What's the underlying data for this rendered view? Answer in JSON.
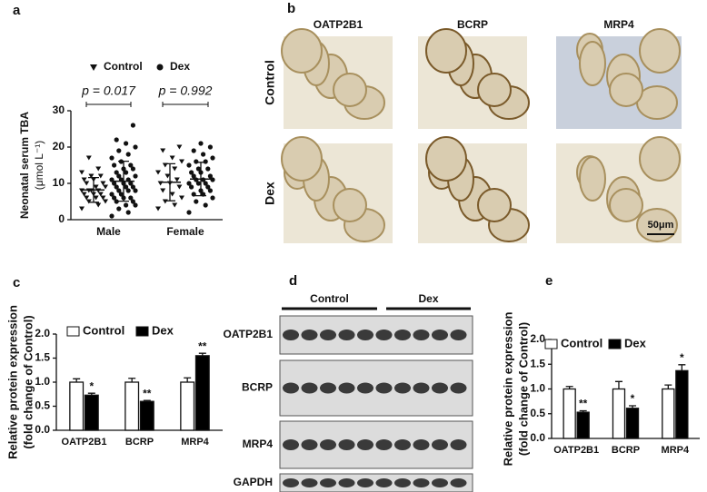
{
  "panel_letters": [
    "a",
    "b",
    "c",
    "d",
    "e"
  ],
  "chart_data": [
    {
      "type": "dot-plot",
      "categories": [
        "Male",
        "Female"
      ],
      "ylabel": "Neonatal serum TBA",
      "yunit": "(μmol L⁻¹)",
      "ylim": [
        0,
        30
      ],
      "yticks": [
        0,
        10,
        20,
        30
      ],
      "annotations": [
        "p = 0.017",
        "p = 0.992"
      ],
      "series": [
        {
          "name": "Control",
          "marker": "triangle",
          "color": "#111111",
          "values": [
            [
              3,
              4,
              5,
              5,
              6,
              6,
              6,
              7,
              7,
              7,
              8,
              8,
              8,
              8,
              9,
              9,
              10,
              10,
              11,
              11,
              12,
              12,
              13,
              14,
              17
            ],
            [
              3,
              4,
              5,
              6,
              7,
              8,
              9,
              10,
              10,
              11,
              12,
              13,
              14,
              15,
              16,
              17,
              19,
              20
            ]
          ],
          "mean": [
            8.2,
            10.3
          ],
          "sd": [
            3.4,
            5.1
          ]
        },
        {
          "name": "Dex",
          "marker": "circle",
          "color": "#111111",
          "values": [
            [
              1,
              2,
              3,
              4,
              4,
              5,
              5,
              6,
              6,
              6,
              7,
              7,
              8,
              8,
              8,
              9,
              9,
              9,
              10,
              10,
              10,
              11,
              11,
              11,
              12,
              12,
              13,
              13,
              14,
              14,
              15,
              15,
              16,
              17,
              18,
              19,
              20,
              21,
              22,
              26
            ],
            [
              2,
              4,
              5,
              6,
              7,
              7,
              8,
              8,
              9,
              9,
              10,
              10,
              10,
              11,
              11,
              11,
              12,
              12,
              13,
              13,
              14,
              14,
              15,
              16,
              16,
              17,
              18,
              19,
              20,
              21
            ]
          ],
          "mean": [
            10.6,
            11.2
          ],
          "sd": [
            5.5,
            4.6
          ]
        }
      ]
    },
    {
      "type": "bar",
      "categories": [
        "OATP2B1",
        "BCRP",
        "MRP4"
      ],
      "ylabel": [
        "Relative protein expression",
        "(fold change of Control)"
      ],
      "ylim": [
        0,
        2
      ],
      "yticks": [
        {
          "value": 0,
          "label": "0.0"
        },
        0.5,
        {
          "value": 1,
          "label": "1.0"
        },
        1.5,
        {
          "value": 2,
          "label": "2.0"
        }
      ],
      "series": [
        {
          "name": "Control",
          "color": "#ffffff",
          "values": [
            1,
            1,
            1
          ],
          "errors": [
            0.07,
            0.08,
            0.09
          ]
        },
        {
          "name": "Dex",
          "color": "#000000",
          "values": [
            0.73,
            0.6,
            1.55
          ],
          "errors": [
            0.04,
            0.02,
            0.05
          ],
          "value_labels": [
            "*",
            "**",
            "**"
          ]
        }
      ]
    },
    {
      "type": "bar",
      "categories": [
        "OATP2B1",
        "BCRP",
        "MRP4"
      ],
      "ylabel": [
        "Relative protein expression",
        "(fold change of Control)"
      ],
      "ylim": [
        0,
        2
      ],
      "yticks": [
        {
          "value": 0,
          "label": "0.0"
        },
        0.5,
        {
          "value": 1,
          "label": "1.0"
        },
        1.5,
        {
          "value": 2,
          "label": "2.0"
        }
      ],
      "series": [
        {
          "name": "Control",
          "color": "#ffffff",
          "values": [
            1,
            1,
            1
          ],
          "errors": [
            0.05,
            0.15,
            0.08
          ]
        },
        {
          "name": "Dex",
          "color": "#000000",
          "values": [
            0.53,
            0.61,
            1.37
          ],
          "errors": [
            0.03,
            0.05,
            0.12
          ],
          "value_labels": [
            "**",
            "*",
            "*"
          ]
        }
      ]
    }
  ],
  "histology": {
    "columns": [
      "OATP2B1",
      "BCRP",
      "MRP4"
    ],
    "rows": [
      "Control",
      "Dex"
    ],
    "scale": "50μm"
  },
  "blot": {
    "groups": [
      "Control",
      "Dex"
    ],
    "proteins": [
      "OATP2B1",
      "BCRP",
      "MRP4",
      "GAPDH"
    ]
  }
}
